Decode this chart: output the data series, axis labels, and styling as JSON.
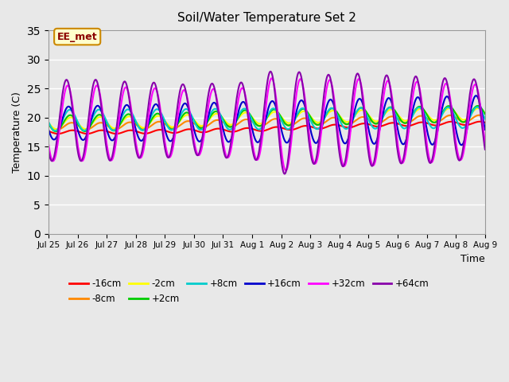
{
  "title": "Soil/Water Temperature Set 2",
  "xlabel": "Time",
  "ylabel": "Temperature (C)",
  "ylim": [
    0,
    35
  ],
  "yticks": [
    0,
    5,
    10,
    15,
    20,
    25,
    30,
    35
  ],
  "annotation": "EE_met",
  "bg_color": "#e8e8e8",
  "grid_color": "#ffffff",
  "series": {
    "-16cm": {
      "color": "#ff0000",
      "lw": 1.5
    },
    "-8cm": {
      "color": "#ff8800",
      "lw": 1.5
    },
    "-2cm": {
      "color": "#ffff00",
      "lw": 1.5
    },
    "+2cm": {
      "color": "#00cc00",
      "lw": 1.5
    },
    "+8cm": {
      "color": "#00cccc",
      "lw": 1.5
    },
    "+16cm": {
      "color": "#0000cc",
      "lw": 1.5
    },
    "+32cm": {
      "color": "#ff00ff",
      "lw": 1.5
    },
    "+64cm": {
      "color": "#8800aa",
      "lw": 1.5
    }
  },
  "n_days": 15,
  "x_tick_positions": [
    0,
    1,
    2,
    3,
    4,
    5,
    6,
    7,
    8,
    9,
    10,
    11,
    12,
    13,
    14,
    15
  ],
  "x_tick_labels": [
    "Jul 25",
    "Jul 26",
    "Jul 27",
    "Jul 28",
    "Jul 29",
    "Jul 30",
    "Jul 31",
    "Aug 1",
    "Aug 2",
    "Aug 3",
    "Aug 4",
    "Aug 5",
    "Aug 6",
    "Aug 7",
    "Aug 8",
    "Aug 9"
  ],
  "deep_base": [
    17.5,
    17.5,
    17.5,
    17.5,
    17.6,
    17.7,
    17.8,
    17.9,
    18.1,
    18.3,
    18.5,
    18.7,
    18.8,
    18.9,
    19.0,
    19.0
  ],
  "mid_base": [
    18.5,
    18.5,
    18.5,
    18.6,
    18.7,
    18.8,
    19.0,
    19.1,
    19.2,
    19.3,
    19.4,
    19.5,
    19.6,
    19.7,
    19.8,
    19.8
  ],
  "shallow_base": [
    19.0,
    19.0,
    19.1,
    19.2,
    19.3,
    19.5,
    19.7,
    19.9,
    20.0,
    20.1,
    20.2,
    20.3,
    20.4,
    20.5,
    20.6,
    20.6
  ]
}
